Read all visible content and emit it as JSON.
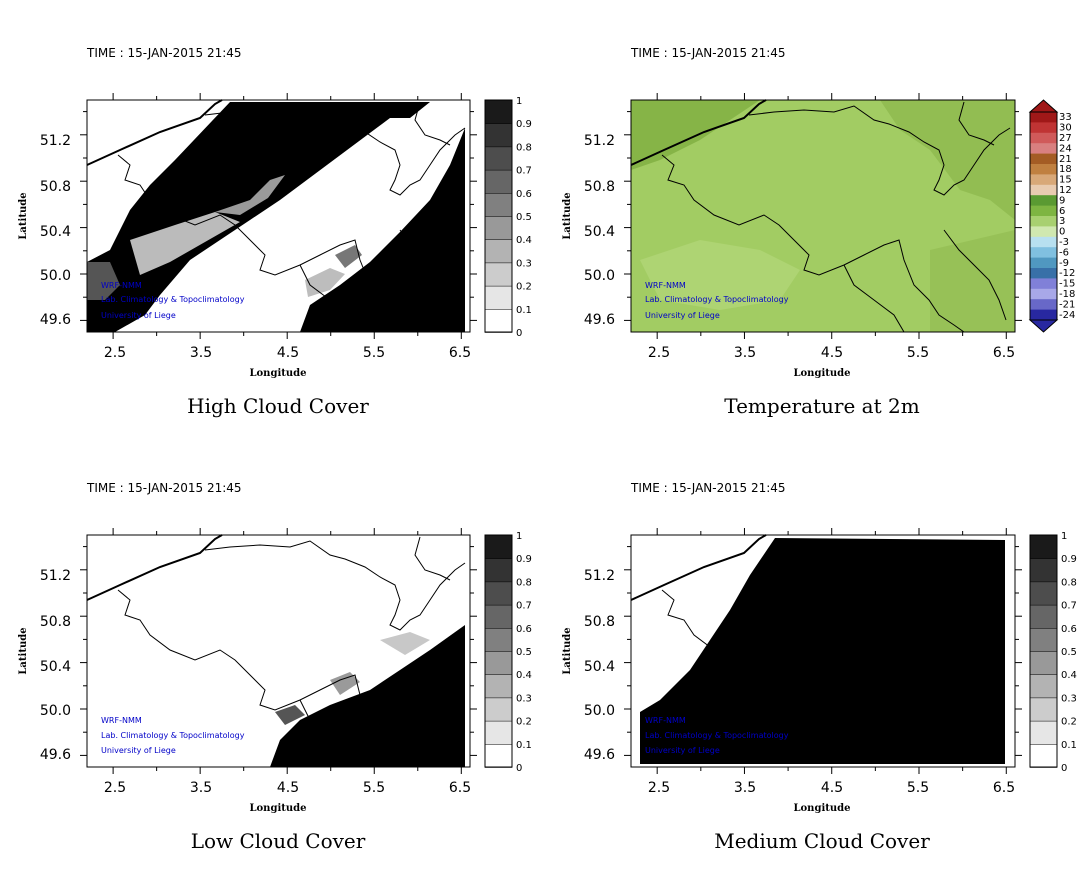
{
  "panels": [
    {
      "id": "high",
      "time_label": "TIME : 15-JAN-2015 21:45",
      "title": "High Cloud Cover",
      "xlabel": "Longitude",
      "ylabel": "Latitude",
      "credit": [
        "WRF-NMM",
        "Lab. Climatology & Topoclimatology",
        "University of Liege"
      ]
    },
    {
      "id": "temp",
      "time_label": "TIME : 15-JAN-2015 21:45",
      "title": "Temperature at 2m",
      "xlabel": "Longitude",
      "ylabel": "Latitude",
      "credit": [
        "WRF-NMM",
        "Lab. Climatology & Topoclimatology",
        "University of Liege"
      ]
    },
    {
      "id": "low",
      "time_label": "TIME : 15-JAN-2015 21:45",
      "title": "Low Cloud Cover",
      "xlabel": "Longitude",
      "ylabel": "Latitude",
      "credit": [
        "WRF-NMM",
        "Lab. Climatology & Topoclimatology",
        "University of Liege"
      ]
    },
    {
      "id": "medium",
      "time_label": "TIME : 15-JAN-2015 21:45",
      "title": "Medium Cloud Cover",
      "xlabel": "Longitude",
      "ylabel": "Latitude",
      "credit": [
        "WRF-NMM",
        "Lab. Climatology & Topoclimatology",
        "University of Liege"
      ]
    }
  ],
  "chart_data": [
    {
      "type": "heatmap",
      "title": "High Cloud Cover",
      "xlabel": "Longitude",
      "ylabel": "Latitude",
      "x_ticks": [
        "2.5",
        "3.5",
        "4.5",
        "5.5",
        "6.5"
      ],
      "y_ticks": [
        "51.2",
        "50.8",
        "50.4",
        "50.0",
        "49.6"
      ],
      "xlim": [
        2.2,
        6.6
      ],
      "ylim": [
        49.5,
        51.5
      ],
      "colorbar": {
        "labels": [
          "0",
          "0.1",
          "0.2",
          "0.3",
          "0.4",
          "0.5",
          "0.6",
          "0.7",
          "0.8",
          "0.9",
          "1"
        ],
        "colors": [
          "#ffffff",
          "#e6e6e6",
          "#cccccc",
          "#b3b3b3",
          "#999999",
          "#808080",
          "#666666",
          "#4d4d4d",
          "#333333",
          "#1a1a1a"
        ]
      }
    },
    {
      "type": "heatmap",
      "title": "Temperature at 2m",
      "xlabel": "Longitude",
      "ylabel": "Latitude",
      "x_ticks": [
        "2.5",
        "3.5",
        "4.5",
        "5.5",
        "6.5"
      ],
      "y_ticks": [
        "51.2",
        "50.8",
        "50.4",
        "50.0",
        "49.6"
      ],
      "xlim": [
        2.2,
        6.6
      ],
      "ylim": [
        49.5,
        51.5
      ],
      "colorbar": {
        "labels": [
          "33",
          "30",
          "27",
          "24",
          "21",
          "18",
          "15",
          "12",
          "9",
          "6",
          "3",
          "0",
          "-3",
          "-6",
          "-9",
          "-12",
          "-15",
          "-18",
          "-21",
          "-24"
        ],
        "colors": [
          "#a01818",
          "#c03434",
          "#d05a5a",
          "#d98080",
          "#a45c24",
          "#c08040",
          "#d8a878",
          "#e8cbb0",
          "#5a9a32",
          "#7eb542",
          "#a8d070",
          "#d0e8b0",
          "#b8e0f0",
          "#80c0e0",
          "#5098c0",
          "#3870a8",
          "#8080d8",
          "#a8a8e8",
          "#6868c8",
          "#2828a0"
        ],
        "field_color": "#a2cc63"
      }
    },
    {
      "type": "heatmap",
      "title": "Low Cloud Cover",
      "xlabel": "Longitude",
      "ylabel": "Latitude",
      "x_ticks": [
        "2.5",
        "3.5",
        "4.5",
        "5.5",
        "6.5"
      ],
      "y_ticks": [
        "51.2",
        "50.8",
        "50.4",
        "50.0",
        "49.6"
      ],
      "xlim": [
        2.2,
        6.6
      ],
      "ylim": [
        49.5,
        51.5
      ],
      "colorbar": {
        "labels": [
          "0",
          "0.1",
          "0.2",
          "0.3",
          "0.4",
          "0.5",
          "0.6",
          "0.7",
          "0.8",
          "0.9",
          "1"
        ],
        "colors": [
          "#ffffff",
          "#e6e6e6",
          "#cccccc",
          "#b3b3b3",
          "#999999",
          "#808080",
          "#666666",
          "#4d4d4d",
          "#333333",
          "#1a1a1a"
        ]
      }
    },
    {
      "type": "heatmap",
      "title": "Medium Cloud Cover",
      "xlabel": "Longitude",
      "ylabel": "Latitude",
      "x_ticks": [
        "2.5",
        "3.5",
        "4.5",
        "5.5",
        "6.5"
      ],
      "y_ticks": [
        "51.2",
        "50.8",
        "50.4",
        "50.0",
        "49.6"
      ],
      "xlim": [
        2.2,
        6.6
      ],
      "ylim": [
        49.5,
        51.5
      ],
      "colorbar": {
        "labels": [
          "0",
          "0.1",
          "0.2",
          "0.3",
          "0.4",
          "0.5",
          "0.6",
          "0.7",
          "0.8",
          "0.9",
          "1"
        ],
        "colors": [
          "#ffffff",
          "#e6e6e6",
          "#cccccc",
          "#b3b3b3",
          "#999999",
          "#808080",
          "#666666",
          "#4d4d4d",
          "#333333",
          "#1a1a1a"
        ]
      }
    }
  ],
  "colors": {
    "credit_text": "#0000c8",
    "border_line": "#000000",
    "cloud_fill": "#000000",
    "temp_field": "#a2cc63",
    "temp_field_dark": "#86b447"
  }
}
